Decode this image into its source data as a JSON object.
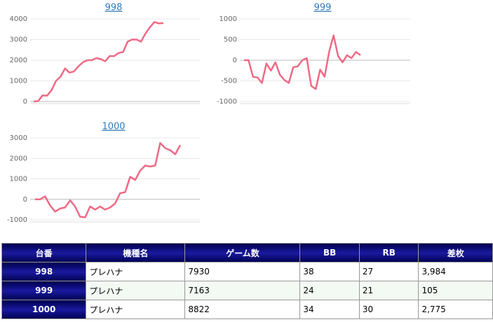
{
  "chart_data": [
    {
      "type": "line",
      "title": "998",
      "color": "#ee6a85",
      "ylim": [
        0,
        4000
      ],
      "yticks": [
        0,
        1000,
        2000,
        3000,
        4000
      ],
      "values": [
        0,
        20,
        300,
        280,
        550,
        1000,
        1200,
        1600,
        1400,
        1450,
        1700,
        1900,
        2000,
        2000,
        2100,
        2050,
        1950,
        2200,
        2200,
        2350,
        2400,
        2900,
        3000,
        3000,
        2900,
        3300,
        3600,
        3850,
        3780,
        3800
      ]
    },
    {
      "type": "line",
      "title": "999",
      "color": "#ee6a85",
      "ylim": [
        -1000,
        1000
      ],
      "yticks": [
        -1000,
        -500,
        0,
        500,
        1000
      ],
      "values": [
        0,
        0,
        -400,
        -420,
        -550,
        -80,
        -250,
        -50,
        -350,
        -480,
        -550,
        -170,
        -150,
        0,
        50,
        -620,
        -700,
        -230,
        -400,
        200,
        600,
        100,
        -50,
        120,
        50,
        200,
        120
      ]
    },
    {
      "type": "line",
      "title": "1000",
      "color": "#ee6a85",
      "ylim": [
        -1000,
        3000
      ],
      "yticks": [
        -1000,
        0,
        1000,
        2000,
        3000
      ],
      "values": [
        0,
        0,
        150,
        -300,
        -600,
        -450,
        -400,
        -50,
        -350,
        -850,
        -880,
        -350,
        -500,
        -350,
        -500,
        -400,
        -200,
        300,
        350,
        1100,
        950,
        1400,
        1650,
        1600,
        1650,
        2750,
        2500,
        2400,
        2200,
        2650
      ]
    }
  ],
  "table": {
    "header": [
      "台番",
      "機種名",
      "ゲーム数",
      "BB",
      "RB",
      "差枚"
    ],
    "rows": [
      [
        "998",
        "プレハナ",
        "7930",
        "38",
        "27",
        "3,984"
      ],
      [
        "999",
        "プレハナ",
        "7163",
        "24",
        "21",
        "105"
      ],
      [
        "1000",
        "プレハナ",
        "8822",
        "34",
        "30",
        "2,775"
      ]
    ]
  }
}
